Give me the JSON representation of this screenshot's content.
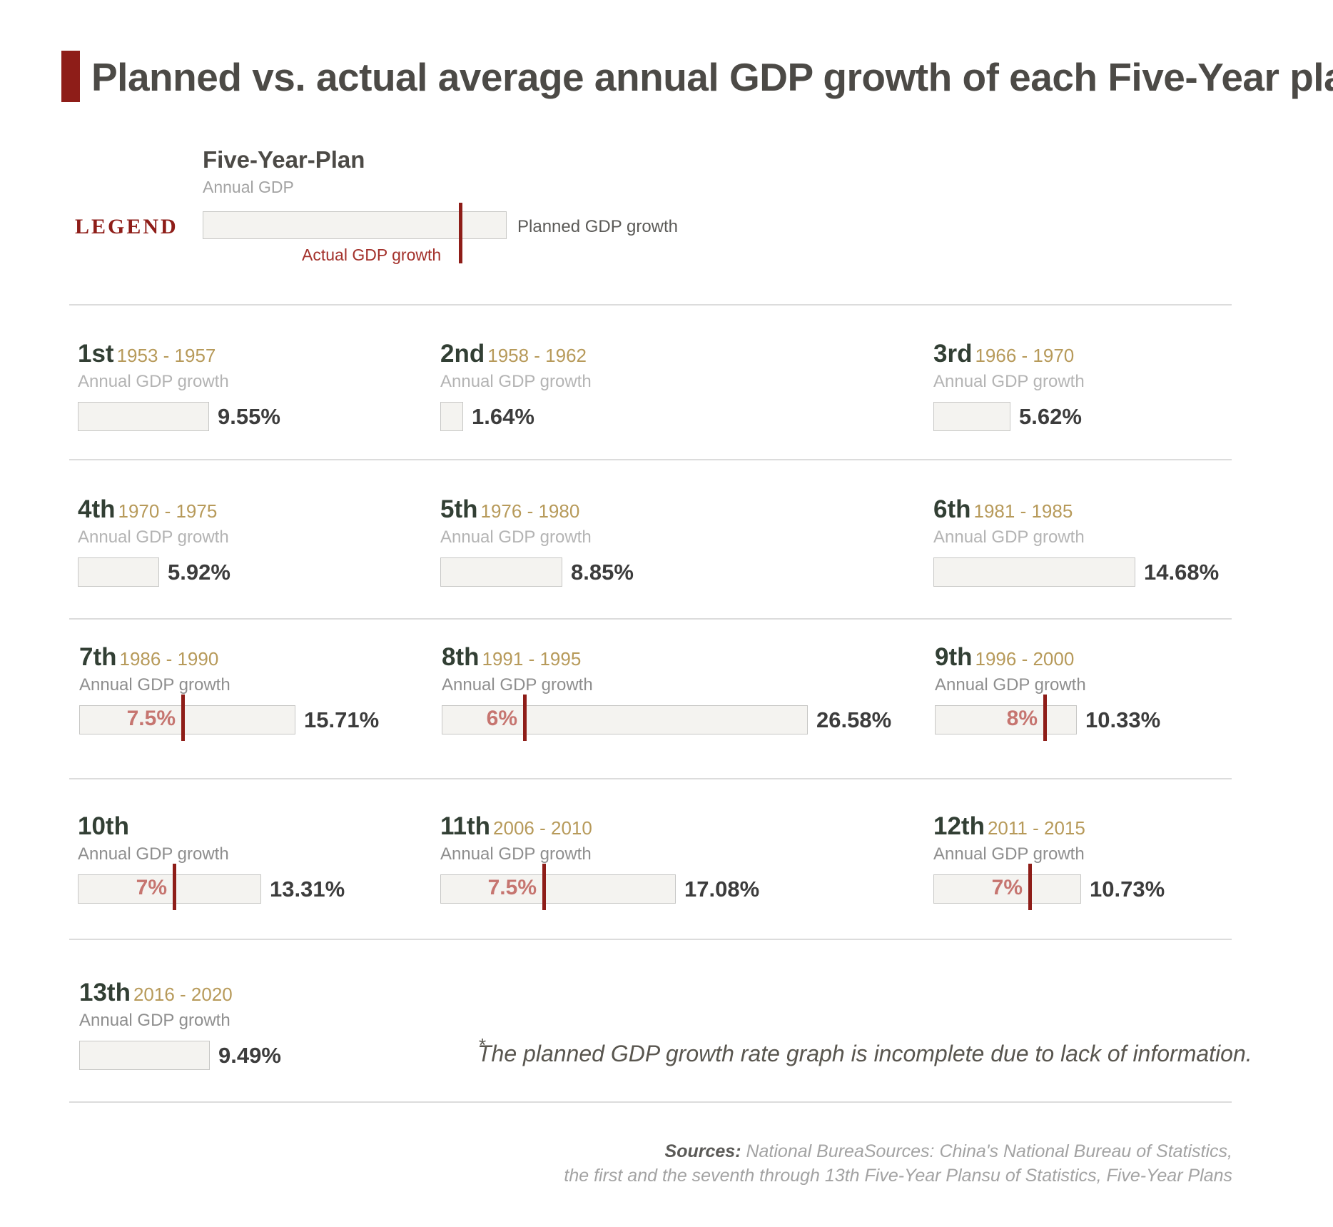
{
  "title": "Planned vs. actual average annual GDP growth of each Five-Year plan",
  "legend": {
    "word": "LEGEND",
    "plan_name": "Five-Year-Plan",
    "annual_label": "Annual GDP",
    "planned_label": "Planned GDP growth",
    "actual_label": "Actual GDP growth"
  },
  "chart_data": {
    "type": "bar",
    "title": "Planned vs. actual average annual GDP growth of each Five-Year plan",
    "x_max": 26.58,
    "series": [
      {
        "name": "Planned GDP growth",
        "values": [
          9.55,
          1.64,
          5.62,
          5.92,
          8.85,
          14.68,
          15.71,
          26.58,
          10.33,
          13.31,
          17.08,
          10.73,
          9.49
        ]
      },
      {
        "name": "Actual GDP growth",
        "values": [
          null,
          null,
          null,
          null,
          null,
          null,
          7.5,
          6,
          8,
          7,
          7.5,
          7,
          null
        ]
      }
    ],
    "plans": [
      {
        "ordinal": "1st",
        "years": "1953 - 1957",
        "label": "Annual GDP growth",
        "value": 9.55,
        "value_label": "9.55%",
        "actual": null,
        "actual_label": ""
      },
      {
        "ordinal": "2nd",
        "years": "1958 - 1962",
        "label": "Annual GDP growth",
        "value": 1.64,
        "value_label": "1.64%",
        "actual": null,
        "actual_label": ""
      },
      {
        "ordinal": "3rd",
        "years": "1966 - 1970",
        "label": "Annual GDP growth",
        "value": 5.62,
        "value_label": "5.62%",
        "actual": null,
        "actual_label": ""
      },
      {
        "ordinal": "4th",
        "years": "1970 - 1975",
        "label": "Annual GDP growth",
        "value": 5.92,
        "value_label": "5.92%",
        "actual": null,
        "actual_label": ""
      },
      {
        "ordinal": "5th",
        "years": "1976 - 1980",
        "label": "Annual GDP growth",
        "value": 8.85,
        "value_label": "8.85%",
        "actual": null,
        "actual_label": ""
      },
      {
        "ordinal": "6th",
        "years": "1981 - 1985",
        "label": "Annual GDP growth",
        "value": 14.68,
        "value_label": "14.68%",
        "actual": null,
        "actual_label": ""
      },
      {
        "ordinal": "7th",
        "years": "1986 - 1990",
        "label": "Annual GDP growth",
        "value": 15.71,
        "value_label": "15.71%",
        "actual": 7.5,
        "actual_label": "7.5%"
      },
      {
        "ordinal": "8th",
        "years": "1991 - 1995",
        "label": "Annual GDP growth",
        "value": 26.58,
        "value_label": "26.58%",
        "actual": 6,
        "actual_label": "6%"
      },
      {
        "ordinal": "9th",
        "years": "1996 - 2000",
        "label": "Annual GDP growth",
        "value": 10.33,
        "value_label": "10.33%",
        "actual": 8,
        "actual_label": "8%"
      },
      {
        "ordinal": "10th",
        "years": "",
        "label": "Annual GDP growth",
        "value": 13.31,
        "value_label": "13.31%",
        "actual": 7,
        "actual_label": "7%"
      },
      {
        "ordinal": "11th",
        "years": "2006 - 2010",
        "label": "Annual GDP growth",
        "value": 17.08,
        "value_label": "17.08%",
        "actual": 7.5,
        "actual_label": "7.5%"
      },
      {
        "ordinal": "12th",
        "years": "2011 - 2015",
        "label": "Annual GDP growth",
        "value": 10.73,
        "value_label": "10.73%",
        "actual": 7,
        "actual_label": "7%"
      },
      {
        "ordinal": "13th",
        "years": "2016 - 2020",
        "label": "Annual GDP growth",
        "value": 9.49,
        "value_label": "9.49%",
        "actual": null,
        "actual_label": ""
      }
    ]
  },
  "footnote": {
    "star": "*",
    "text": "The planned GDP growth rate graph is incomplete due to lack of information."
  },
  "sources": {
    "label": "Sources:",
    "line1": "National BureaSources: China's National Bureau of Statistics,",
    "line2": "the first and the seventh through 13th Five-Year Plansu of Statistics, Five-Year Plans"
  },
  "colors": {
    "accent": "#8e1d18",
    "bar_fill": "#f4f3f0",
    "bar_border": "#c7c7c5",
    "ordinal": "#323f34",
    "years": "#b79a5a",
    "actual_label": "#c67570"
  }
}
